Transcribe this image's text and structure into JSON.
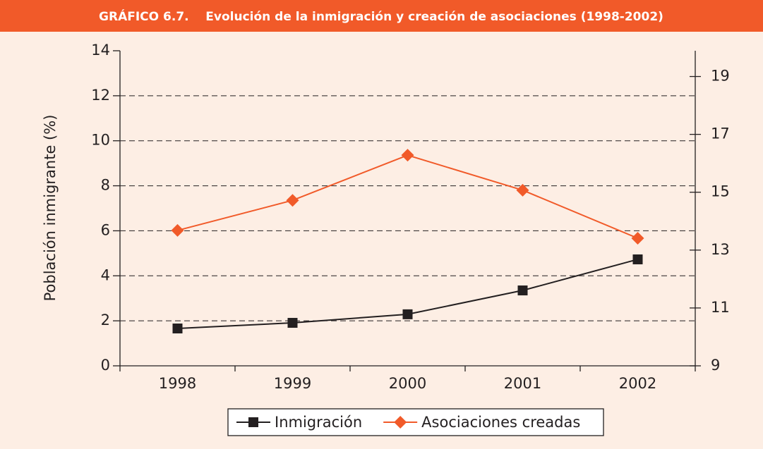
{
  "chart_data": {
    "type": "line",
    "title": "GRÁFICO 6.7.    Evolución de la inmigración y creación de asociaciones (1998-2002)",
    "y_label": "Población inmigrante (%)",
    "categories": [
      "1998",
      "1999",
      "2000",
      "2001",
      "2002"
    ],
    "series": [
      {
        "name": "Inmigración",
        "color": "#231f20",
        "marker": "square",
        "values": [
          1.66,
          1.91,
          2.29,
          3.35,
          4.73
        ]
      },
      {
        "name": "Asociaciones creadas",
        "color": "#f15a29",
        "marker": "diamond",
        "axis": "y2",
        "values": [
          13.68,
          14.72,
          16.28,
          15.07,
          13.41
        ]
      }
    ],
    "ylim": [
      0,
      14
    ],
    "yticks": [
      0,
      2,
      4,
      6,
      8,
      10,
      12,
      14
    ],
    "y2lim": [
      9,
      19.89
    ],
    "y2ticks": [
      9,
      11,
      13,
      15,
      17,
      19
    ],
    "grid": true,
    "legend": "bottom"
  }
}
